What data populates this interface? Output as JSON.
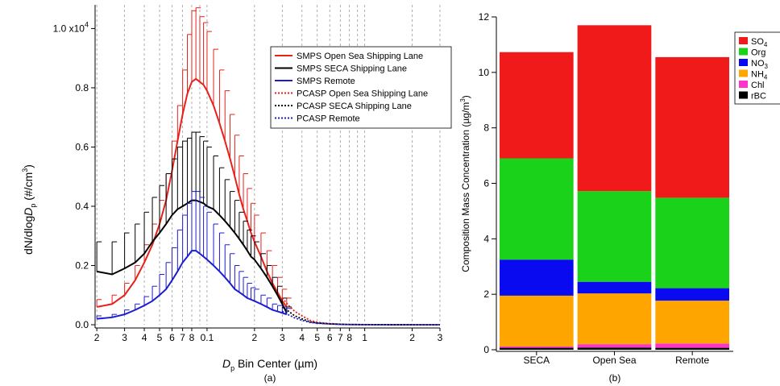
{
  "chart_data": [
    {
      "type": "line",
      "panel_label": "(a)",
      "xlabel": "D_p Bin Center (µm)",
      "xlabel_parts": {
        "var": "D",
        "sub": "p",
        "rest": " Bin Center (µm)"
      },
      "ylabel": "dN/dlogD_p (#/cm^3)",
      "ylabel_parts": {
        "pre": "dN/dlog",
        "var": "D",
        "sub": "p",
        "mid": " (#/cm",
        "sup": "3",
        "post": ")"
      },
      "x_scale": "log",
      "xlim": [
        0.0195,
        3.0
      ],
      "ylim": [
        0,
        10800
      ],
      "y_ticks": [
        0,
        2000,
        4000,
        6000,
        8000,
        10000
      ],
      "y_tick_labels": [
        "0.0",
        "0.2",
        "0.4",
        "0.6",
        "0.8",
        "1.0 x10"
      ],
      "y_tick_exponent": "4",
      "x_ticks": [
        {
          "v": 0.02,
          "label": "2"
        },
        {
          "v": 0.03,
          "label": "3"
        },
        {
          "v": 0.04,
          "label": "4"
        },
        {
          "v": 0.05,
          "label": "5"
        },
        {
          "v": 0.06,
          "label": "6"
        },
        {
          "v": 0.07,
          "label": "7"
        },
        {
          "v": 0.08,
          "label": "8"
        },
        {
          "v": 0.1,
          "label": "0.1"
        },
        {
          "v": 0.2,
          "label": "2"
        },
        {
          "v": 0.3,
          "label": "3"
        },
        {
          "v": 0.4,
          "label": "4"
        },
        {
          "v": 0.5,
          "label": "5"
        },
        {
          "v": 0.6,
          "label": "6"
        },
        {
          "v": 0.7,
          "label": "7"
        },
        {
          "v": 0.8,
          "label": "8"
        },
        {
          "v": 1.0,
          "label": "1"
        },
        {
          "v": 2.0,
          "label": "2"
        },
        {
          "v": 3.0,
          "label": "3"
        }
      ],
      "minor_gridlines_at": [
        0.09,
        0.9
      ],
      "grid": "vertical dashed at log ticks",
      "legend_position": "top-right",
      "series": [
        {
          "name": "SMPS Open Sea Shipping Lane",
          "color": "#e8201a",
          "style": "solid",
          "error_bars": true,
          "x": [
            0.02,
            0.025,
            0.03,
            0.035,
            0.04,
            0.045,
            0.05,
            0.055,
            0.06,
            0.065,
            0.07,
            0.075,
            0.08,
            0.085,
            0.09,
            0.095,
            0.1,
            0.11,
            0.12,
            0.13,
            0.14,
            0.15,
            0.16,
            0.17,
            0.18,
            0.19,
            0.2,
            0.22,
            0.24,
            0.26,
            0.28,
            0.3,
            0.32
          ],
          "y": [
            600,
            700,
            1000,
            1500,
            2100,
            2700,
            3400,
            4200,
            5200,
            6200,
            7100,
            7800,
            8200,
            8300,
            8200,
            8100,
            7900,
            7400,
            6800,
            6200,
            5600,
            5000,
            4400,
            3900,
            3500,
            3100,
            2800,
            2300,
            1800,
            1400,
            1100,
            800,
            600
          ],
          "err": [
            250,
            300,
            400,
            500,
            600,
            700,
            800,
            900,
            1000,
            1200,
            1500,
            2000,
            2400,
            2400,
            2200,
            2100,
            2000,
            1900,
            1800,
            1700,
            1500,
            1400,
            1300,
            1200,
            1100,
            1000,
            900,
            800,
            700,
            600,
            500,
            400,
            300
          ]
        },
        {
          "name": "SMPS SECA Shipping Lane",
          "color": "#000000",
          "style": "solid",
          "error_bars": true,
          "x": [
            0.02,
            0.025,
            0.03,
            0.035,
            0.04,
            0.045,
            0.05,
            0.055,
            0.06,
            0.065,
            0.07,
            0.075,
            0.08,
            0.085,
            0.09,
            0.095,
            0.1,
            0.11,
            0.12,
            0.13,
            0.14,
            0.15,
            0.16,
            0.17,
            0.18,
            0.19,
            0.2,
            0.22,
            0.24,
            0.26,
            0.28,
            0.3,
            0.32
          ],
          "y": [
            1800,
            1700,
            1900,
            2100,
            2400,
            2800,
            3100,
            3400,
            3700,
            3900,
            4000,
            4100,
            4200,
            4200,
            4150,
            4100,
            4000,
            3900,
            3700,
            3500,
            3300,
            3100,
            2900,
            2700,
            2500,
            2300,
            2200,
            1900,
            1600,
            1300,
            1000,
            700,
            400
          ],
          "err": [
            1000,
            1100,
            1200,
            1300,
            1400,
            1500,
            1600,
            1700,
            1900,
            2100,
            2200,
            2200,
            2300,
            2300,
            2200,
            2100,
            2000,
            1800,
            1600,
            1400,
            1200,
            1100,
            900,
            800,
            700,
            700,
            600,
            500,
            400,
            300,
            300,
            200,
            200
          ]
        },
        {
          "name": "SMPS Remote",
          "color": "#1c1cd1",
          "style": "solid",
          "error_bars": true,
          "x": [
            0.02,
            0.025,
            0.03,
            0.035,
            0.04,
            0.045,
            0.05,
            0.055,
            0.06,
            0.065,
            0.07,
            0.075,
            0.08,
            0.085,
            0.09,
            0.095,
            0.1,
            0.11,
            0.12,
            0.13,
            0.14,
            0.15,
            0.16,
            0.17,
            0.18,
            0.19,
            0.2,
            0.22,
            0.24,
            0.26,
            0.28,
            0.3,
            0.32
          ],
          "y": [
            200,
            250,
            350,
            500,
            650,
            800,
            1000,
            1200,
            1500,
            1800,
            2100,
            2300,
            2500,
            2500,
            2400,
            2300,
            2200,
            2000,
            1800,
            1600,
            1400,
            1200,
            1100,
            1000,
            900,
            850,
            800,
            700,
            600,
            500,
            450,
            400,
            350
          ],
          "err": [
            100,
            100,
            150,
            200,
            300,
            500,
            700,
            900,
            1100,
            1400,
            1600,
            1800,
            2000,
            2000,
            1900,
            1700,
            1600,
            1400,
            1300,
            1100,
            1000,
            800,
            700,
            600,
            500,
            400,
            400,
            300,
            300,
            200,
            200,
            200,
            200
          ]
        },
        {
          "name": "PCASP Open Sea Shipping Lane",
          "color": "#e8201a",
          "style": "dotted",
          "error_bars": false,
          "x": [
            0.3,
            0.33,
            0.36,
            0.4,
            0.45,
            0.5,
            0.6,
            0.7,
            0.8,
            1.0,
            1.5,
            2.0,
            3.0
          ],
          "y": [
            900,
            650,
            450,
            300,
            150,
            80,
            40,
            20,
            10,
            5,
            2,
            1,
            0
          ]
        },
        {
          "name": "PCASP SECA Shipping Lane",
          "color": "#000000",
          "style": "dotted",
          "error_bars": false,
          "x": [
            0.3,
            0.33,
            0.36,
            0.4,
            0.45,
            0.5,
            0.6,
            0.7,
            0.8,
            1.0,
            1.5,
            2.0,
            3.0
          ],
          "y": [
            600,
            450,
            300,
            200,
            100,
            60,
            30,
            15,
            8,
            4,
            2,
            1,
            0
          ]
        },
        {
          "name": "PCASP Remote",
          "color": "#1c1cd1",
          "style": "dotted",
          "error_bars": false,
          "x": [
            0.3,
            0.33,
            0.36,
            0.4,
            0.45,
            0.5,
            0.6,
            0.7,
            0.8,
            1.0,
            1.5,
            2.0,
            3.0
          ],
          "y": [
            450,
            330,
            230,
            150,
            80,
            50,
            25,
            12,
            6,
            3,
            1,
            0,
            0
          ]
        }
      ]
    },
    {
      "type": "bar",
      "stacked": true,
      "panel_label": "(b)",
      "ylabel": "Composition Mass Concentration (µg/m^3)",
      "ylabel_parts": {
        "pre": "Composition Mass Concentration (µg/m",
        "sup": "3",
        "post": ")"
      },
      "xlabel": "",
      "categories": [
        "SECA",
        "Open Sea",
        "Remote"
      ],
      "ylim": [
        0,
        12
      ],
      "y_ticks": [
        0,
        2,
        4,
        6,
        8,
        10,
        12
      ],
      "grid": false,
      "legend_position": "right",
      "series": [
        {
          "name": "rBC",
          "label_main": "rBC",
          "label_sub": "",
          "color": "#000000",
          "values": [
            0.07,
            0.08,
            0.07
          ]
        },
        {
          "name": "Chl",
          "label_main": "Chl",
          "label_sub": "",
          "color": "#ff33cc",
          "values": [
            0.05,
            0.12,
            0.15
          ]
        },
        {
          "name": "NH4",
          "label_main": "NH",
          "label_sub": "4",
          "color": "#ffa500",
          "values": [
            1.83,
            1.83,
            1.55
          ]
        },
        {
          "name": "NO3",
          "label_main": "NO",
          "label_sub": "3",
          "color": "#0a0af0",
          "values": [
            1.3,
            0.42,
            0.45
          ]
        },
        {
          "name": "Org",
          "label_main": "Org",
          "label_sub": "",
          "color": "#19d219",
          "values": [
            3.65,
            3.27,
            3.26
          ]
        },
        {
          "name": "SO4",
          "label_main": "SO",
          "label_sub": "4",
          "color": "#f01a1a",
          "values": [
            3.83,
            5.98,
            5.07
          ]
        }
      ]
    }
  ]
}
